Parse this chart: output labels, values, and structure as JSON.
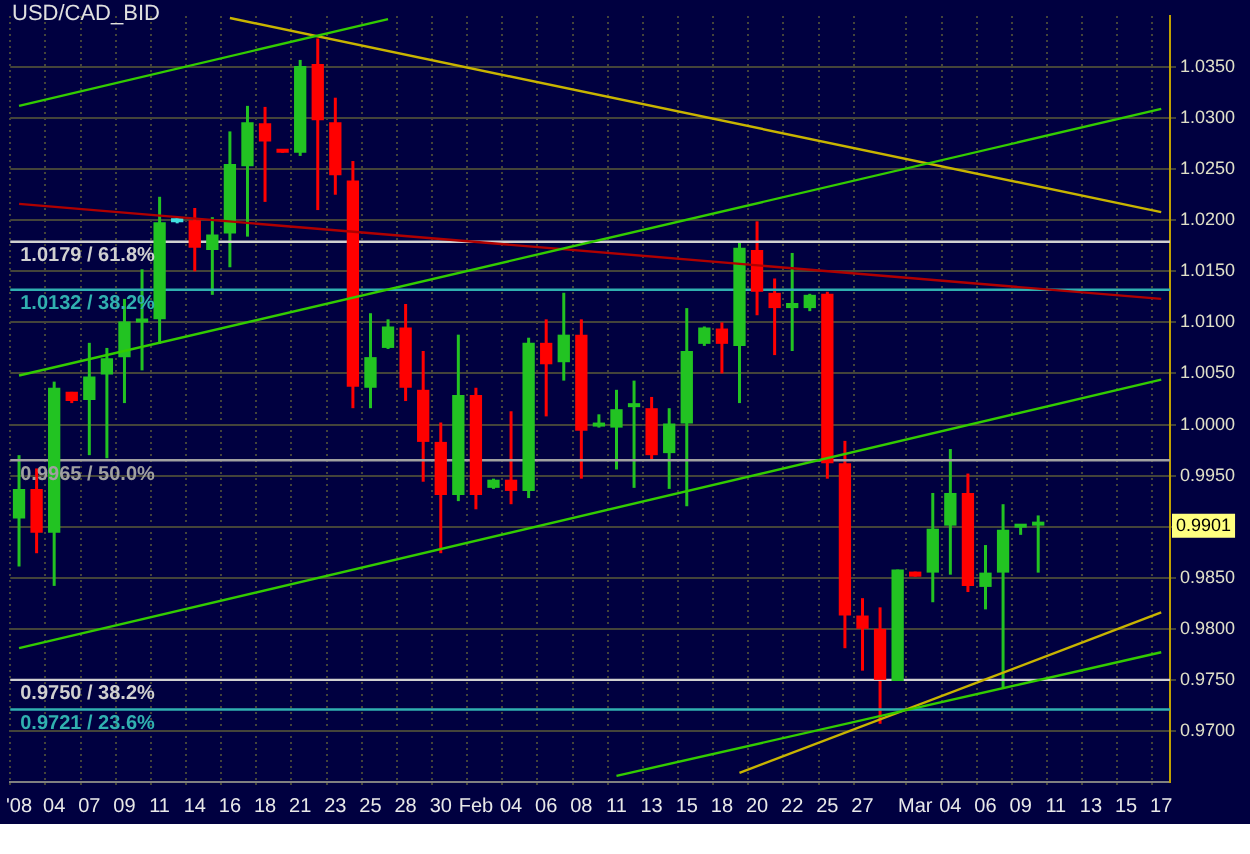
{
  "chart_data": {
    "type": "candlestick",
    "title": "USD/CAD_BID",
    "categories": [
      "'08",
      null,
      "04",
      null,
      "07",
      null,
      "09",
      null,
      "11",
      null,
      "14",
      null,
      "16",
      null,
      "18",
      null,
      "21",
      null,
      "23",
      null,
      "25",
      null,
      "28",
      null,
      "30",
      null,
      "Feb",
      null,
      "04",
      null,
      "06",
      null,
      "08",
      null,
      "11",
      null,
      "13",
      null,
      "15",
      null,
      "18",
      null,
      "20",
      null,
      "22",
      null,
      "25",
      null,
      "27",
      null,
      null,
      "Mar",
      null,
      "04",
      null,
      "06",
      null,
      "09",
      null,
      "11",
      null,
      "13",
      null,
      "15",
      null,
      "17"
    ],
    "ohlc": [
      [
        0.9908,
        0.997,
        0.9861,
        0.9937
      ],
      [
        0.9937,
        0.9957,
        0.9874,
        0.9894
      ],
      [
        0.9894,
        1.0042,
        0.9842,
        1.0036
      ],
      [
        1.0032,
        1.0032,
        1.0021,
        1.0023
      ],
      [
        1.0024,
        1.008,
        0.997,
        1.0047
      ],
      [
        1.0049,
        1.0075,
        0.9967,
        1.0065
      ],
      [
        1.0066,
        1.0123,
        1.0021,
        1.0101
      ],
      [
        1.01,
        1.0152,
        1.0053,
        1.0102
      ],
      [
        1.0103,
        1.0223,
        1.0079,
        1.0198
      ],
      [
        1.0198,
        1.0202,
        1.0197,
        1.02
      ],
      [
        1.02,
        1.0212,
        1.015,
        1.0173
      ],
      [
        1.0171,
        1.0203,
        1.0127,
        1.0186
      ],
      [
        1.0187,
        1.0287,
        1.0154,
        1.0255
      ],
      [
        1.0253,
        1.0312,
        1.0184,
        1.0296
      ],
      [
        1.0295,
        1.0311,
        1.0218,
        1.0277
      ],
      [
        1.0269,
        1.0269,
        1.0266,
        1.0266
      ],
      [
        1.0266,
        1.0357,
        1.0263,
        1.0351
      ],
      [
        1.0353,
        1.0378,
        1.021,
        1.0298
      ],
      [
        1.0296,
        1.032,
        1.0225,
        1.0244
      ],
      [
        1.0239,
        1.0258,
        1.0016,
        1.0037
      ],
      [
        1.0036,
        1.0109,
        1.0016,
        1.0066
      ],
      [
        1.0075,
        1.0103,
        1.0074,
        1.0096
      ],
      [
        1.0095,
        1.0118,
        1.0023,
        1.0036
      ],
      [
        1.0034,
        1.0072,
        0.9944,
        0.9983
      ],
      [
        0.9983,
        1.0002,
        0.9874,
        0.9931
      ],
      [
        0.9931,
        1.0088,
        0.9925,
        1.0029
      ],
      [
        1.0029,
        1.0036,
        0.9917,
        0.9931
      ],
      [
        0.9938,
        0.9947,
        0.9937,
        0.9946
      ],
      [
        0.9946,
        1.0013,
        0.9922,
        0.9935
      ],
      [
        0.9935,
        1.0085,
        0.9928,
        1.008
      ],
      [
        1.008,
        1.0103,
        1.0008,
        1.0059
      ],
      [
        1.0061,
        1.0129,
        1.0043,
        1.0088
      ],
      [
        1.0088,
        1.0103,
        0.9947,
        0.9994
      ],
      [
        0.9998,
        1.001,
        0.9997,
        0.9999
      ],
      [
        0.9997,
        1.0034,
        0.9956,
        1.0015
      ],
      [
        1.0017,
        1.0043,
        0.9938,
        1.0018
      ],
      [
        1.0016,
        1.0027,
        0.9965,
        0.997
      ],
      [
        0.9972,
        1.0016,
        0.9937,
        1.0001
      ],
      [
        1.0001,
        1.0114,
        0.992,
        1.0072
      ],
      [
        1.0079,
        1.0096,
        1.0077,
        1.0095
      ],
      [
        1.0094,
        1.01,
        1.005,
        1.0079
      ],
      [
        1.0077,
        1.0178,
        1.0021,
        1.0173
      ],
      [
        1.0171,
        1.0199,
        1.0107,
        1.013
      ],
      [
        1.0129,
        1.0143,
        1.0068,
        1.0114
      ],
      [
        1.0114,
        1.0168,
        1.0072,
        1.0119
      ],
      [
        1.0114,
        1.0128,
        1.0111,
        1.0127
      ],
      [
        1.0128,
        1.013,
        0.9947,
        0.9962
      ],
      [
        0.9962,
        0.9984,
        0.9781,
        0.9813
      ],
      [
        0.9813,
        0.983,
        0.9759,
        0.98
      ],
      [
        0.98,
        0.9821,
        0.9707,
        0.975
      ],
      [
        0.9749,
        0.9858,
        0.9749,
        0.9858
      ],
      [
        0.9856,
        0.9856,
        0.9851,
        0.9851
      ],
      [
        0.9855,
        0.9933,
        0.9826,
        0.9898
      ],
      [
        0.9901,
        0.9976,
        0.9853,
        0.9933
      ],
      [
        0.9933,
        0.9952,
        0.9836,
        0.9842
      ],
      [
        0.9841,
        0.9882,
        0.9819,
        0.9855
      ],
      [
        0.9855,
        0.9922,
        0.9741,
        0.9897
      ],
      [
        0.9899,
        0.99,
        0.9892,
        0.99
      ],
      [
        0.9902,
        0.9911,
        0.9855,
        0.9901
      ],
      null,
      null,
      null,
      null,
      null,
      null,
      null
    ],
    "colors": [
      "#22c322",
      "#ff0000",
      "#22c322",
      "#ff0000",
      "#22c322",
      "#22c322",
      "#22c322",
      "#22c322",
      "#22c322",
      "#40e0e0",
      "#ff0000",
      "#22c322",
      "#22c322",
      "#22c322",
      "#ff0000",
      "#ff0000",
      "#22c322",
      "#ff0000",
      "#ff0000",
      "#ff0000",
      "#22c322",
      "#22c322",
      "#ff0000",
      "#ff0000",
      "#ff0000",
      "#22c322",
      "#ff0000",
      "#22c322",
      "#ff0000",
      "#22c322",
      "#ff0000",
      "#22c322",
      "#ff0000",
      "#22c322",
      "#22c322",
      "#22c322",
      "#ff0000",
      "#22c322",
      "#22c322",
      "#22c322",
      "#ff0000",
      "#22c322",
      "#ff0000",
      "#ff0000",
      "#22c322",
      "#22c322",
      "#ff0000",
      "#ff0000",
      "#ff0000",
      "#ff0000",
      "#22c322",
      "#ff0000",
      "#22c322",
      "#22c322",
      "#ff0000",
      "#22c322",
      "#22c322",
      "#22c322",
      "#22c322",
      null,
      null,
      null,
      null,
      null,
      null,
      null
    ],
    "series": [
      {
        "type": "line",
        "color": "#33cc00",
        "values": [
          1.0048,
          null,
          null,
          null,
          null,
          null,
          null,
          null,
          null,
          null,
          null,
          null,
          null,
          null,
          null,
          null,
          null,
          null,
          null,
          null,
          null,
          null,
          null,
          null,
          null,
          null,
          null,
          null,
          null,
          null,
          null,
          null,
          null,
          null,
          null,
          null,
          null,
          null,
          null,
          null,
          null,
          null,
          null,
          null,
          null,
          null,
          null,
          null,
          null,
          null,
          null,
          null,
          null,
          null,
          null,
          null,
          null,
          null,
          null,
          null,
          null,
          null,
          null,
          null,
          null,
          1.0309
        ]
      },
      {
        "type": "line",
        "color": "#33cc00",
        "values": [
          1.0312,
          null,
          null,
          null,
          null,
          null,
          null,
          null,
          null,
          null,
          null,
          null,
          null,
          null,
          null,
          null,
          null,
          null,
          null,
          null,
          null,
          1.0397,
          null,
          null,
          null,
          null,
          null,
          null,
          null,
          null,
          null,
          null,
          null,
          null,
          null,
          null,
          null,
          null,
          null,
          null,
          null,
          null,
          null,
          null,
          null,
          null,
          null,
          null,
          null,
          null,
          null,
          null,
          null,
          null,
          null,
          null,
          null,
          null,
          null,
          null,
          null,
          null,
          null,
          null,
          null,
          null
        ]
      },
      {
        "type": "line",
        "color": "#33cc00",
        "values": [
          0.9781,
          null,
          null,
          null,
          null,
          null,
          null,
          null,
          null,
          null,
          null,
          null,
          null,
          null,
          null,
          null,
          null,
          null,
          null,
          null,
          null,
          null,
          null,
          null,
          null,
          null,
          null,
          null,
          null,
          null,
          null,
          null,
          null,
          null,
          null,
          null,
          null,
          null,
          null,
          null,
          null,
          null,
          null,
          null,
          null,
          null,
          null,
          null,
          null,
          null,
          null,
          null,
          null,
          null,
          null,
          null,
          null,
          null,
          null,
          null,
          null,
          null,
          null,
          null,
          null,
          1.0044
        ]
      },
      {
        "type": "line",
        "color": "#c8b400",
        "values": [
          null,
          null,
          null,
          null,
          null,
          null,
          null,
          null,
          null,
          null,
          null,
          null,
          1.0398,
          null,
          null,
          null,
          null,
          null,
          null,
          null,
          null,
          null,
          null,
          null,
          null,
          null,
          null,
          null,
          null,
          null,
          null,
          null,
          null,
          null,
          null,
          null,
          null,
          null,
          null,
          null,
          null,
          null,
          null,
          null,
          null,
          null,
          null,
          null,
          null,
          null,
          null,
          null,
          null,
          null,
          null,
          null,
          null,
          null,
          null,
          null,
          null,
          null,
          null,
          null,
          null,
          1.0208
        ]
      },
      {
        "type": "line",
        "color": "#b00000",
        "values": [
          1.0216,
          null,
          null,
          null,
          null,
          null,
          null,
          null,
          null,
          null,
          null,
          null,
          null,
          null,
          null,
          null,
          null,
          null,
          null,
          null,
          null,
          null,
          null,
          null,
          null,
          null,
          null,
          null,
          null,
          null,
          null,
          null,
          null,
          null,
          null,
          null,
          null,
          null,
          null,
          null,
          null,
          null,
          null,
          null,
          null,
          null,
          null,
          null,
          null,
          null,
          null,
          null,
          null,
          null,
          null,
          null,
          null,
          null,
          null,
          null,
          null,
          null,
          null,
          null,
          null,
          1.0123
        ]
      },
      {
        "type": "line",
        "color": "#33cc00",
        "values": [
          null,
          null,
          null,
          null,
          null,
          null,
          null,
          null,
          null,
          null,
          null,
          null,
          null,
          null,
          null,
          null,
          null,
          null,
          null,
          null,
          null,
          null,
          null,
          null,
          null,
          null,
          null,
          null,
          null,
          null,
          null,
          null,
          null,
          null,
          0.9656,
          null,
          null,
          null,
          null,
          null,
          null,
          null,
          null,
          null,
          null,
          null,
          null,
          null,
          null,
          null,
          null,
          null,
          null,
          null,
          null,
          null,
          null,
          null,
          null,
          null,
          null,
          null,
          null,
          null,
          null,
          0.9777
        ]
      },
      {
        "type": "line",
        "color": "#c8b400",
        "values": [
          null,
          null,
          null,
          null,
          null,
          null,
          null,
          null,
          null,
          null,
          null,
          null,
          null,
          null,
          null,
          null,
          null,
          null,
          null,
          null,
          null,
          null,
          null,
          null,
          null,
          null,
          null,
          null,
          null,
          null,
          null,
          null,
          null,
          null,
          null,
          null,
          null,
          null,
          null,
          null,
          null,
          0.9659,
          null,
          null,
          null,
          null,
          null,
          null,
          null,
          null,
          null,
          null,
          null,
          null,
          null,
          null,
          null,
          null,
          null,
          null,
          null,
          null,
          null,
          null,
          null,
          0.9816
        ]
      }
    ],
    "ylim": [
      0.965,
      1.04
    ],
    "yticks": [
      {
        "value": 0.97,
        "label": "0.9700"
      },
      {
        "value": 0.975,
        "label": "0.9750"
      },
      {
        "value": 0.98,
        "label": "0.9800"
      },
      {
        "value": 0.985,
        "label": "0.9850"
      },
      {
        "value": 0.99,
        "label": null
      },
      {
        "value": 0.995,
        "label": "0.9950"
      },
      {
        "value": 1.0,
        "label": "1.0000"
      },
      {
        "value": 1.005,
        "label": "1.0050"
      },
      {
        "value": 1.01,
        "label": "1.0100"
      },
      {
        "value": 1.015,
        "label": "1.0150"
      },
      {
        "value": 1.02,
        "label": "1.0200"
      },
      {
        "value": 1.025,
        "label": "1.0250"
      },
      {
        "value": 1.03,
        "label": "1.0300"
      },
      {
        "value": 1.035,
        "label": "1.0350"
      }
    ],
    "grid": true,
    "ref_lines": [
      {
        "axis": "y",
        "value": 1.0179,
        "label": "1.0179 / 61.8%",
        "color": "#d0d0d0"
      },
      {
        "axis": "y",
        "value": 1.0132,
        "label": "1.0132 / 38.2%",
        "color": "#30b0b0"
      },
      {
        "axis": "y",
        "value": 0.9965,
        "label": "0.9965 / 50.0%",
        "color": "#a0a0a0"
      },
      {
        "axis": "y",
        "value": 0.975,
        "label": "0.9750 / 38.2%",
        "color": "#d0d0d0"
      },
      {
        "axis": "y",
        "value": 0.9721,
        "label": "0.9721 / 23.6%",
        "color": "#30b0b0"
      }
    ],
    "annotations": [
      {
        "text": "0.9901",
        "y": 0.9901
      }
    ]
  }
}
